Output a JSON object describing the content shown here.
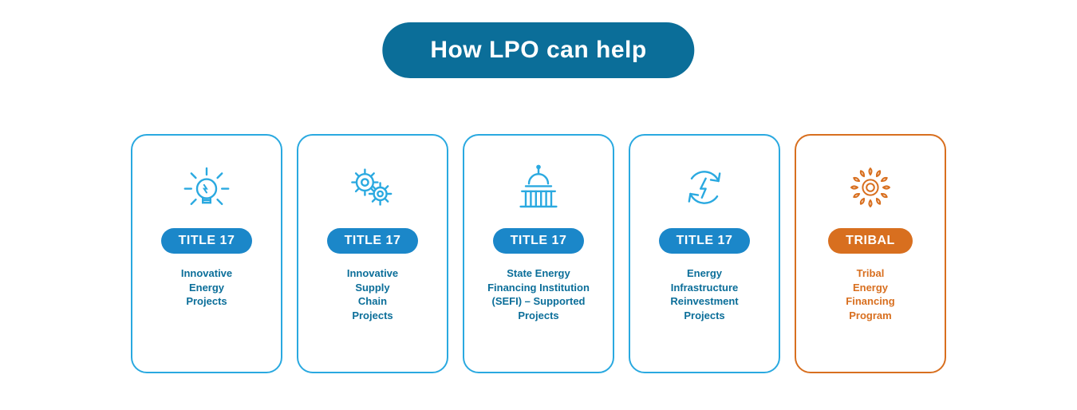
{
  "header": {
    "text": "How LPO can help",
    "bg_color": "#0b6e99",
    "text_color": "#ffffff",
    "font_size": 30
  },
  "colors": {
    "blue_border": "#2aa9e0",
    "blue_badge": "#1b87c9",
    "blue_text": "#0b6e99",
    "blue_icon": "#2aa9e0",
    "orange_border": "#d86f1f",
    "orange_badge": "#d86f1f",
    "orange_text": "#d86f1f",
    "orange_icon": "#d86f1f",
    "white": "#ffffff"
  },
  "card_style": {
    "badge_font_size": 16,
    "desc_font_size": 13
  },
  "cards": [
    {
      "icon": "lightbulb",
      "badge": "TITLE 17",
      "desc": "Innovative\nEnergy\nProjects",
      "variant": "blue"
    },
    {
      "icon": "gears",
      "badge": "TITLE 17",
      "desc": "Innovative\nSupply\nChain\nProjects",
      "variant": "blue"
    },
    {
      "icon": "capitol",
      "badge": "TITLE 17",
      "desc": "State Energy\nFinancing Institution\n(SEFI) – Supported\nProjects",
      "variant": "blue"
    },
    {
      "icon": "cycle-bolt",
      "badge": "TITLE 17",
      "desc": "Energy\nInfrastructure\nReinvestment\nProjects",
      "variant": "blue"
    },
    {
      "icon": "sun",
      "badge": "TRIBAL",
      "desc": "Tribal\nEnergy\nFinancing\nProgram",
      "variant": "orange"
    }
  ]
}
